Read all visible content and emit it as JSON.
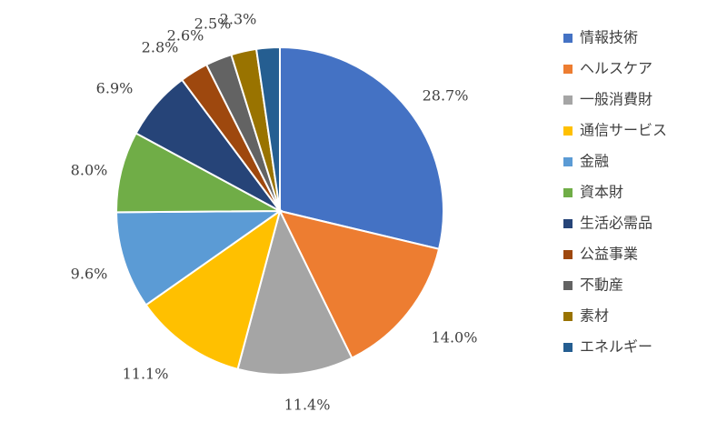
{
  "chart_data": {
    "type": "pie",
    "title": "",
    "legend_position": "right",
    "categories": [
      "情報技術",
      "ヘルスケア",
      "一般消費財",
      "通信サービス",
      "金融",
      "資本財",
      "生活必需品",
      "公益事業",
      "不動産",
      "素材",
      "エネルギー"
    ],
    "values": [
      28.7,
      14.0,
      11.4,
      11.1,
      9.6,
      8.0,
      6.9,
      2.8,
      2.6,
      2.5,
      2.3
    ],
    "value_labels": [
      "28.7%",
      "14.0%",
      "11.4%",
      "11.1%",
      "9.6%",
      "8.0%",
      "6.9%",
      "2.8%",
      "2.6%",
      "2.5%",
      "2.3%"
    ],
    "colors": [
      "#4472C4",
      "#ED7D31",
      "#A5A5A5",
      "#FFC000",
      "#5B9BD5",
      "#70AD47",
      "#264478",
      "#9E480E",
      "#636363",
      "#997300",
      "#255E91"
    ]
  }
}
